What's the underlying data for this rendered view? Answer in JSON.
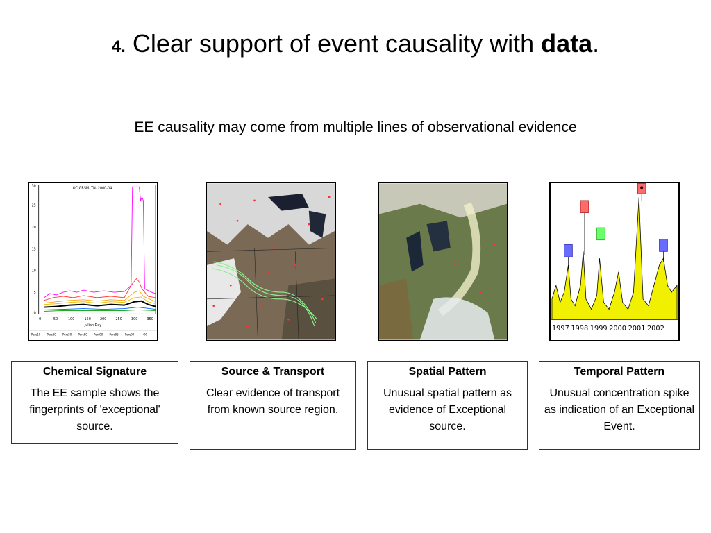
{
  "slide": {
    "title_num": "4.",
    "title_main": " Clear support of event causality with ",
    "title_bold": "data",
    "title_end": ".",
    "subtitle": "EE causality may come from multiple lines of observational evidence"
  },
  "chart1": {
    "title": "OC GRSM, TN, 2000-04",
    "xlabel": "Julian Day",
    "yticks": [
      "0",
      "5",
      "10",
      "15",
      "20",
      "25",
      "30"
    ],
    "xticks": [
      "0",
      "50",
      "100",
      "150",
      "200",
      "250",
      "300",
      "350"
    ],
    "legend": [
      "Perc10",
      "Perc20",
      "Perc50",
      "Perc80",
      "Perc90",
      "Perc95",
      "Perc99",
      "OC"
    ]
  },
  "chart4": {
    "years": [
      "1997",
      "1998",
      "1999",
      "2000",
      "2001",
      "2002"
    ]
  },
  "cards": [
    {
      "title": "Chemical Signature",
      "body": "The EE sample shows the fingerprints of 'exceptional' source."
    },
    {
      "title": "Source & Transport",
      "body": "Clear evidence of transport from known source region."
    },
    {
      "title": "Spatial Pattern",
      "body": "Unusual spatial pattern as evidence of Exceptional source."
    },
    {
      "title": "Temporal Pattern",
      "body": "Unusual concentration spike as indication of an Exceptional Event."
    }
  ]
}
